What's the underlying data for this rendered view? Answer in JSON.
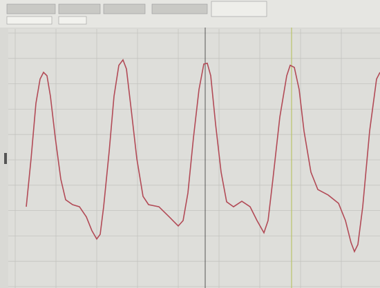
{
  "chart_data": {
    "type": "line",
    "x": [
      38,
      45,
      52,
      58,
      63,
      68,
      73,
      80,
      88,
      95,
      105,
      115,
      125,
      133,
      140,
      145,
      150,
      158,
      165,
      172,
      178,
      183,
      190,
      198,
      207,
      215,
      230,
      245,
      258,
      265,
      272,
      280,
      288,
      295,
      300,
      305,
      312,
      320,
      328,
      338,
      350,
      362,
      372,
      382,
      388,
      395,
      405,
      415,
      420,
      426,
      433,
      440,
      450,
      460,
      475,
      490,
      500,
      508,
      513,
      518,
      525,
      535,
      545,
      550
    ],
    "series": [
      {
        "color": "#b24a56",
        "values": [
          31.2,
          49.7,
          70.9,
          80.2,
          82.8,
          81.5,
          73.6,
          57.7,
          41.8,
          33.9,
          32.0,
          31.2,
          27.3,
          22.0,
          18.8,
          20.6,
          31.2,
          52.4,
          73.6,
          85.5,
          87.6,
          84.1,
          68.3,
          49.7,
          35.2,
          32.0,
          31.2,
          27.3,
          23.8,
          25.9,
          36.5,
          57.7,
          76.2,
          86.0,
          86.3,
          81.5,
          63.0,
          44.5,
          33.1,
          31.2,
          33.3,
          31.2,
          25.9,
          21.2,
          25.9,
          41.8,
          65.6,
          81.5,
          85.5,
          84.7,
          76.2,
          60.3,
          44.5,
          37.8,
          35.7,
          32.5,
          25.9,
          17.5,
          14.0,
          16.7,
          31.2,
          60.3,
          80.2,
          82.8
        ]
      }
    ],
    "xlim": [
      0,
      550
    ],
    "ylim": [
      0,
      100
    ]
  }
}
